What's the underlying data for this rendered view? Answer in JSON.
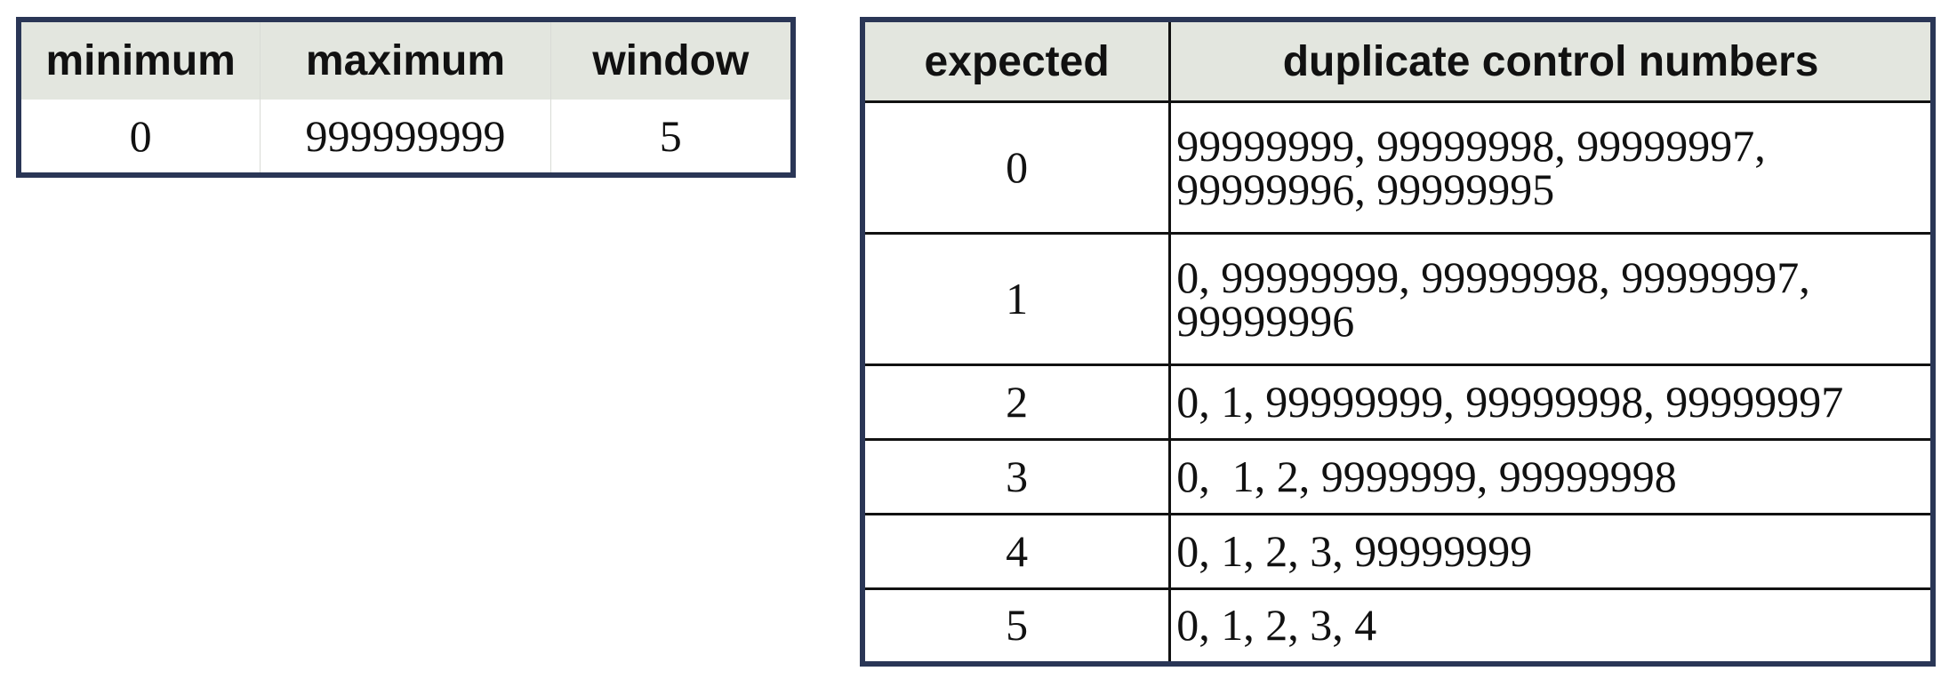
{
  "params_table": {
    "headers": [
      "minimum",
      "maximum",
      "window"
    ],
    "row": [
      "0",
      "999999999",
      "5"
    ]
  },
  "duplicates_table": {
    "headers": [
      "expected",
      "duplicate control numbers"
    ],
    "rows": [
      {
        "expected": "0",
        "numbers": "99999999, 99999998, 99999997, 99999996, 99999995"
      },
      {
        "expected": "1",
        "numbers": "0, 99999999, 99999998, 99999997, 99999996"
      },
      {
        "expected": "2",
        "numbers": "0, 1, 99999999, 99999998, 99999997"
      },
      {
        "expected": "3",
        "numbers": "0,  1, 2, 9999999, 99999998"
      },
      {
        "expected": "4",
        "numbers": "0, 1, 2, 3, 99999999"
      },
      {
        "expected": "5",
        "numbers": "0, 1, 2, 3, 4"
      }
    ]
  },
  "colors": {
    "border": "#2a3656",
    "header_bg": "#e3e6df"
  }
}
